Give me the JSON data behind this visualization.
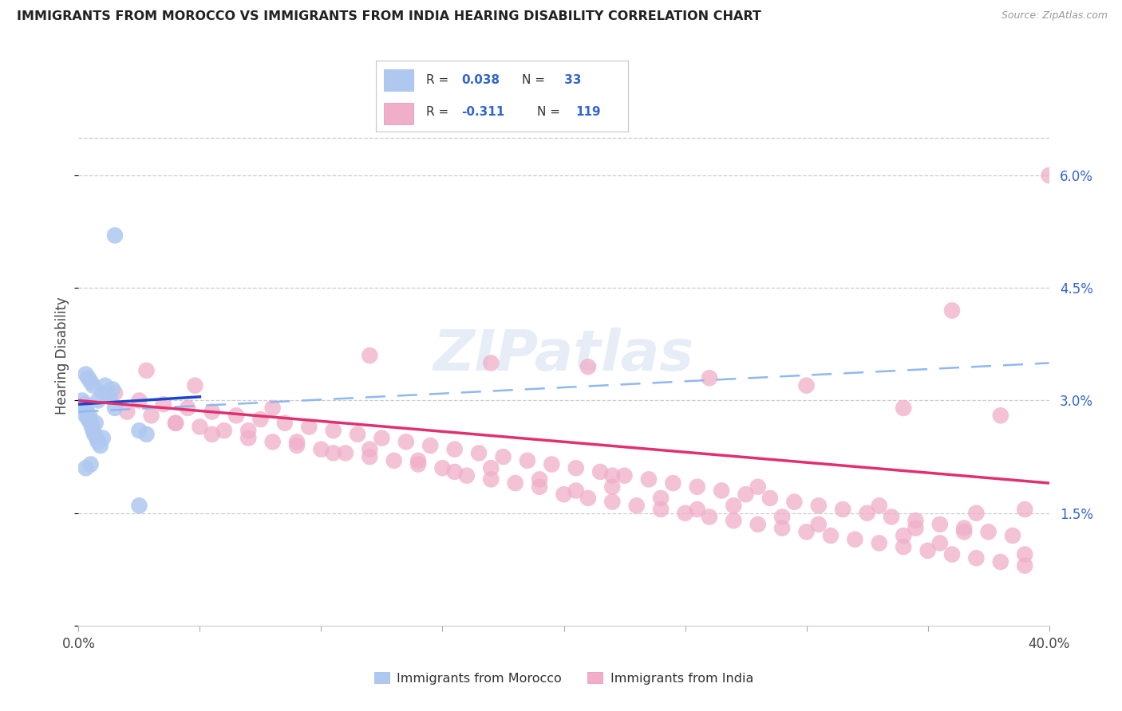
{
  "title": "IMMIGRANTS FROM MOROCCO VS IMMIGRANTS FROM INDIA HEARING DISABILITY CORRELATION CHART",
  "source": "Source: ZipAtlas.com",
  "ylabel": "Hearing Disability",
  "legend_label1": "Immigrants from Morocco",
  "legend_label2": "Immigrants from India",
  "morocco_color": "#aec8f0",
  "india_color": "#f0aec8",
  "morocco_line_color": "#1a44cc",
  "india_line_color": "#e03070",
  "dashed_line_color": "#90b8f0",
  "grid_color": "#c8c8c8",
  "right_axis_color": "#3366cc",
  "text_dark": "#222222",
  "xmin": 0.0,
  "xmax": 40.0,
  "ymin": 0.0,
  "ymax": 7.2,
  "yticks": [
    0.0,
    1.5,
    3.0,
    4.5,
    6.0
  ],
  "ytick_labels": [
    "",
    "1.5%",
    "3.0%",
    "4.5%",
    "6.0%"
  ],
  "morocco_x": [
    0.15,
    0.2,
    0.25,
    0.3,
    0.35,
    0.4,
    0.45,
    0.5,
    0.55,
    0.6,
    0.65,
    0.7,
    0.75,
    0.8,
    0.9,
    1.0,
    1.1,
    1.2,
    1.3,
    1.4,
    1.5,
    0.4,
    0.5,
    0.6,
    0.3,
    0.8,
    1.0,
    2.5,
    2.8,
    0.3,
    0.5,
    2.5,
    1.5
  ],
  "morocco_y": [
    3.0,
    2.9,
    2.95,
    2.8,
    2.85,
    2.75,
    2.8,
    2.7,
    2.65,
    2.6,
    2.55,
    2.7,
    2.5,
    2.45,
    2.4,
    2.5,
    3.2,
    3.1,
    3.05,
    3.15,
    2.9,
    3.3,
    3.25,
    3.2,
    3.35,
    3.0,
    3.1,
    2.6,
    2.55,
    2.1,
    2.15,
    1.6,
    5.2
  ],
  "india_x": [
    1.5,
    2.5,
    3.5,
    4.5,
    5.5,
    6.5,
    7.5,
    8.5,
    9.5,
    10.5,
    11.5,
    12.5,
    13.5,
    14.5,
    15.5,
    16.5,
    17.5,
    18.5,
    19.5,
    20.5,
    21.5,
    22.5,
    23.5,
    24.5,
    25.5,
    26.5,
    27.5,
    28.5,
    29.5,
    30.5,
    31.5,
    32.5,
    33.5,
    34.5,
    35.5,
    36.5,
    37.5,
    38.5,
    2.0,
    3.0,
    4.0,
    5.0,
    6.0,
    7.0,
    8.0,
    9.0,
    10.0,
    11.0,
    12.0,
    13.0,
    14.0,
    15.0,
    16.0,
    17.0,
    18.0,
    19.0,
    20.0,
    21.0,
    22.0,
    23.0,
    24.0,
    25.0,
    26.0,
    27.0,
    28.0,
    29.0,
    30.0,
    31.0,
    32.0,
    33.0,
    34.0,
    35.0,
    36.0,
    37.0,
    38.0,
    39.0,
    2.8,
    4.8,
    8.0,
    12.0,
    17.0,
    21.0,
    26.0,
    30.0,
    34.0,
    36.0,
    38.0,
    22.0,
    28.0,
    33.0,
    37.0,
    34.5,
    36.5,
    39.0,
    40.0,
    5.5,
    10.5,
    15.5,
    20.5,
    25.5,
    30.5,
    35.5,
    4.0,
    9.0,
    14.0,
    19.0,
    24.0,
    29.0,
    34.0,
    39.0,
    7.0,
    12.0,
    17.0,
    22.0,
    27.0
  ],
  "india_y": [
    3.1,
    3.0,
    2.95,
    2.9,
    2.85,
    2.8,
    2.75,
    2.7,
    2.65,
    2.6,
    2.55,
    2.5,
    2.45,
    2.4,
    2.35,
    2.3,
    2.25,
    2.2,
    2.15,
    2.1,
    2.05,
    2.0,
    1.95,
    1.9,
    1.85,
    1.8,
    1.75,
    1.7,
    1.65,
    1.6,
    1.55,
    1.5,
    1.45,
    1.4,
    1.35,
    1.3,
    1.25,
    1.2,
    2.85,
    2.8,
    2.7,
    2.65,
    2.6,
    2.5,
    2.45,
    2.4,
    2.35,
    2.3,
    2.25,
    2.2,
    2.15,
    2.1,
    2.0,
    1.95,
    1.9,
    1.85,
    1.75,
    1.7,
    1.65,
    1.6,
    1.55,
    1.5,
    1.45,
    1.4,
    1.35,
    1.3,
    1.25,
    1.2,
    1.15,
    1.1,
    1.05,
    1.0,
    0.95,
    0.9,
    0.85,
    0.8,
    3.4,
    3.2,
    2.9,
    3.6,
    3.5,
    3.45,
    3.3,
    3.2,
    2.9,
    4.2,
    2.8,
    2.0,
    1.85,
    1.6,
    1.5,
    1.3,
    1.25,
    1.55,
    6.0,
    2.55,
    2.3,
    2.05,
    1.8,
    1.55,
    1.35,
    1.1,
    2.7,
    2.45,
    2.2,
    1.95,
    1.7,
    1.45,
    1.2,
    0.95,
    2.6,
    2.35,
    2.1,
    1.85,
    1.6
  ],
  "morocco_line_start_x": 0.0,
  "morocco_line_start_y": 2.95,
  "morocco_line_end_x": 5.0,
  "morocco_line_end_y": 3.05,
  "india_line_start_x": 0.0,
  "india_line_start_y": 3.0,
  "india_line_end_x": 40.0,
  "india_line_end_y": 1.9,
  "dashed_line_start_x": 0.0,
  "dashed_line_start_y": 2.85,
  "dashed_line_end_x": 40.0,
  "dashed_line_end_y": 3.5
}
